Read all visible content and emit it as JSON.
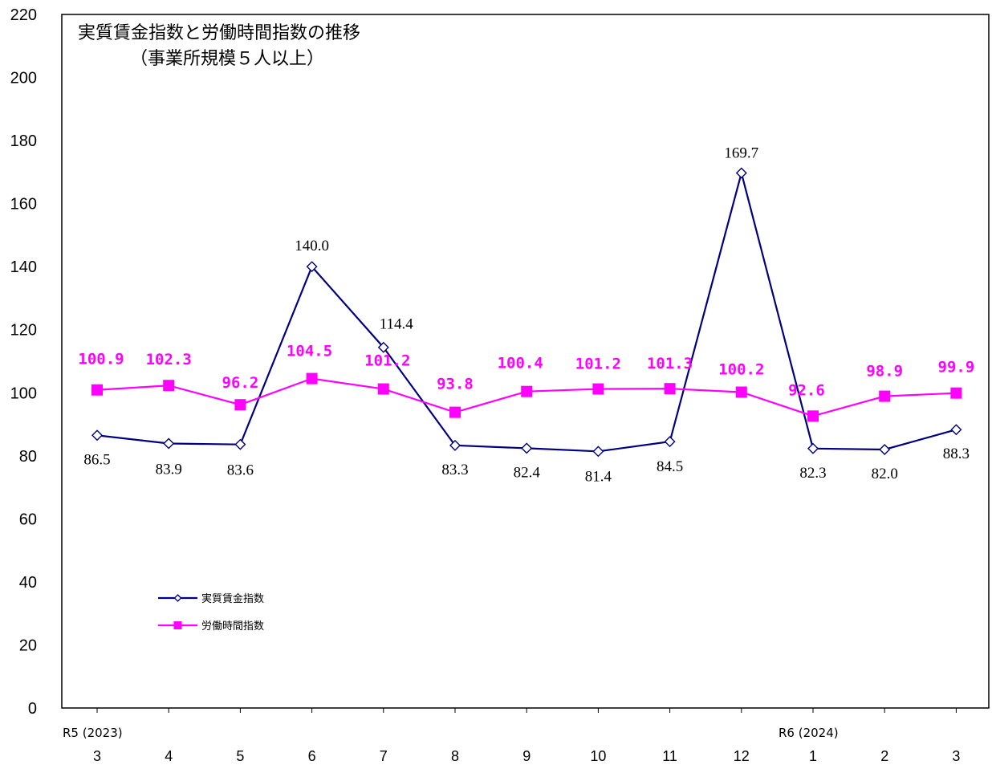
{
  "chart_data": {
    "type": "line",
    "title": "実質賃金指数と労働時間指数の推移",
    "subtitle": "（事業所規模５人以上）",
    "categories": [
      "3",
      "4",
      "5",
      "6",
      "7",
      "8",
      "9",
      "10",
      "11",
      "12",
      "1",
      "2",
      "3"
    ],
    "era_labels": [
      {
        "category_index": 0,
        "text": "R5 (2023)"
      },
      {
        "category_index": 10,
        "text": "R6 (2024)"
      }
    ],
    "ylim": [
      0,
      220
    ],
    "yticks": [
      0,
      20,
      40,
      60,
      80,
      100,
      120,
      140,
      160,
      180,
      200,
      220
    ],
    "grid": false,
    "legend_position": "bottom-left",
    "series": [
      {
        "name": "実質賃金指数",
        "color": "#000080",
        "marker": "diamond-open",
        "values": [
          86.5,
          83.9,
          83.6,
          140.0,
          114.4,
          83.3,
          82.4,
          81.4,
          84.5,
          169.7,
          82.3,
          82.0,
          88.3
        ],
        "labels": [
          "86.5",
          "83.9",
          "83.6",
          "140.0",
          "114.4",
          "83.3",
          "82.4",
          "81.4",
          "84.5",
          "169.7",
          "82.3",
          "82.0",
          "88.3"
        ]
      },
      {
        "name": "労働時間指数",
        "color": "#ff00ff",
        "marker": "square-filled",
        "values": [
          100.9,
          102.3,
          96.2,
          104.5,
          101.2,
          93.8,
          100.4,
          101.2,
          101.3,
          100.2,
          92.6,
          98.9,
          99.9
        ],
        "labels": [
          "100.9",
          "102.3",
          "96.2",
          "104.5",
          "101.2",
          "93.8",
          "100.4",
          "101.2",
          "101.3",
          "100.2",
          "92.6",
          "98.9",
          "99.9"
        ]
      }
    ]
  }
}
